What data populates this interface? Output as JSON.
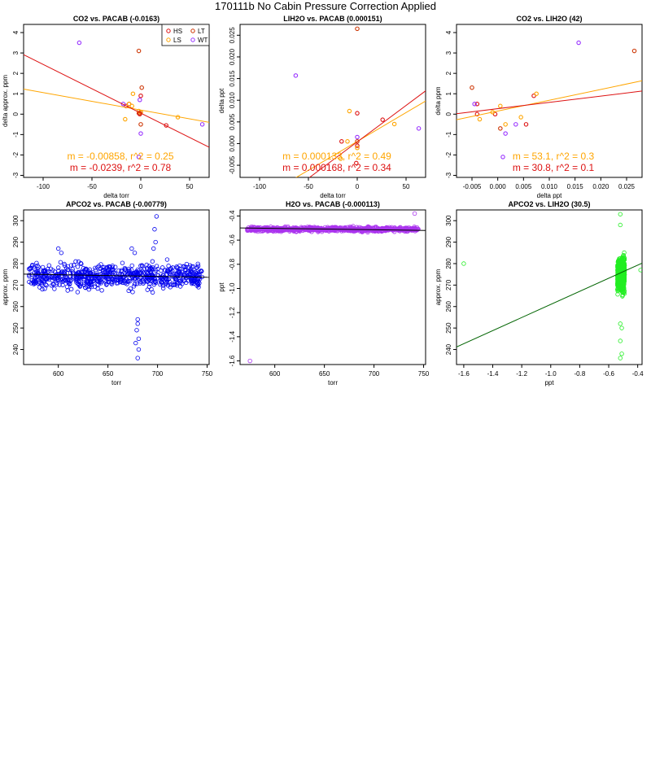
{
  "figure": {
    "title": "170111b   No Cabin Pressure Correction Applied"
  },
  "colors": {
    "HS": "#dd1111",
    "LS": "#ffa500",
    "LT": "#cc3300",
    "WT": "#9933ff",
    "blue": "#0000ee",
    "purple": "#aa33ee",
    "green": "#22ee22",
    "darkgreen": "#006400"
  },
  "chart_data": [
    {
      "type": "scatter",
      "title": "CO2 vs. PACAB (-0.0163)",
      "xlabel": "delta torr",
      "ylabel": "delta approx. ppm",
      "xlim": [
        -120,
        70
      ],
      "ylim": [
        -3.1,
        4.4
      ],
      "xticks": [
        -100,
        -50,
        0,
        50
      ],
      "yticks": [
        -3,
        -2,
        -1,
        0,
        1,
        2,
        3,
        4
      ],
      "legend": {
        "position": "top-right",
        "entries": [
          {
            "label": "HS",
            "color": "HS"
          },
          {
            "label": "LT",
            "color": "LT"
          },
          {
            "label": "LS",
            "color": "LS"
          },
          {
            "label": "WT",
            "color": "WT"
          }
        ]
      },
      "series": [
        {
          "name": "HS",
          "points": [
            [
              -12,
              0.5
            ],
            [
              -15,
              0.4
            ],
            [
              0,
              0.9
            ],
            [
              0,
              0.1
            ],
            [
              -1,
              0
            ],
            [
              26,
              -0.55
            ],
            [
              -2,
              0.05
            ]
          ]
        },
        {
          "name": "LS",
          "points": [
            [
              -8,
              1
            ],
            [
              -9,
              0.4
            ],
            [
              0,
              0.1
            ],
            [
              -16,
              -0.25
            ],
            [
              38,
              -0.15
            ],
            [
              -2,
              0.15
            ],
            [
              -12,
              0.5
            ]
          ]
        },
        {
          "name": "LT",
          "points": [
            [
              -2,
              3.1
            ],
            [
              1,
              1.3
            ],
            [
              0,
              -0.5
            ],
            [
              -1,
              0.05
            ]
          ]
        },
        {
          "name": "WT",
          "points": [
            [
              -63,
              3.5
            ],
            [
              -18,
              0.5
            ],
            [
              0,
              -0.95
            ],
            [
              63,
              -0.5
            ],
            [
              -2,
              -2.1
            ],
            [
              -1,
              0.7
            ]
          ]
        }
      ],
      "lines": [
        {
          "name": "LS fit",
          "color": "LS",
          "slope": -0.00858,
          "intercept": 0.2
        },
        {
          "name": "HS fit",
          "color": "HS",
          "slope": -0.0239,
          "intercept": 0.05
        }
      ],
      "annotations": [
        {
          "text": "m = -0.00858, r^2 = 0.25",
          "color": "LS"
        },
        {
          "text": "m = -0.0239, r^2 = 0.78",
          "color": "HS"
        }
      ]
    },
    {
      "type": "scatter",
      "title": "LIH2O vs. PACAB (0.000151)",
      "xlabel": "delta torr",
      "ylabel": "delta ppt",
      "xlim": [
        -120,
        70
      ],
      "ylim": [
        -0.0078,
        0.0275
      ],
      "xticks": [
        -100,
        -50,
        0,
        50
      ],
      "yticks": [
        -0.005,
        0,
        0.005,
        0.01,
        0.015,
        0.02,
        0.025
      ],
      "ytick_labels": [
        "-0.005",
        "0.000",
        "0.005",
        "0.010",
        "0.015",
        "0.020",
        "0.025"
      ],
      "series": [
        {
          "name": "HS",
          "points": [
            [
              -16,
              0.0005
            ],
            [
              0,
              0.007
            ],
            [
              0,
              -0.0005
            ],
            [
              26,
              0.0055
            ],
            [
              -1,
              -0.0045
            ]
          ]
        },
        {
          "name": "LS",
          "points": [
            [
              -8,
              0.0075
            ],
            [
              -10,
              0.0005
            ],
            [
              0,
              -0.001
            ],
            [
              38,
              0.0045
            ],
            [
              -17,
              -0.0035
            ]
          ]
        },
        {
          "name": "LT",
          "points": [
            [
              0,
              0.0265
            ],
            [
              0,
              0.0005
            ]
          ]
        },
        {
          "name": "WT",
          "points": [
            [
              -63,
              0.0157
            ],
            [
              63,
              0.0035
            ],
            [
              0,
              0.0015
            ]
          ]
        }
      ],
      "lines": [
        {
          "name": "LS fit",
          "color": "LS",
          "slope": 0.000133,
          "intercept": 0.0005
        },
        {
          "name": "HS fit",
          "color": "HS",
          "slope": 0.000168,
          "intercept": 0.0004
        }
      ],
      "annotations": [
        {
          "text": "m = 0.000133, r^2 = 0.49",
          "color": "LS"
        },
        {
          "text": "m = 0.000168, r^2 = 0.34",
          "color": "HS"
        }
      ]
    },
    {
      "type": "scatter",
      "title": "CO2 vs. LIH2O (42)",
      "xlabel": "delta ppt",
      "ylabel": "delta ppm",
      "xlim": [
        -0.008,
        0.028
      ],
      "ylim": [
        -3.1,
        4.4
      ],
      "xticks": [
        -0.005,
        0,
        0.005,
        0.01,
        0.015,
        0.02,
        0.025
      ],
      "xtick_labels": [
        "-0.005",
        "0.000",
        "0.005",
        "0.010",
        "0.015",
        "0.020",
        "0.025"
      ],
      "yticks": [
        -3,
        -2,
        -1,
        0,
        1,
        2,
        3,
        4
      ],
      "series": [
        {
          "name": "HS",
          "points": [
            [
              -0.004,
              0.5
            ],
            [
              0.007,
              0.9
            ],
            [
              0.0055,
              -0.5
            ],
            [
              -0.0005,
              0
            ],
            [
              -0.004,
              0
            ]
          ]
        },
        {
          "name": "LS",
          "points": [
            [
              0.0075,
              1
            ],
            [
              0.0005,
              0.4
            ],
            [
              -0.001,
              0.1
            ],
            [
              0.0045,
              -0.15
            ],
            [
              -0.0035,
              -0.25
            ],
            [
              0.0015,
              -0.5
            ]
          ]
        },
        {
          "name": "LT",
          "points": [
            [
              0.0265,
              3.1
            ],
            [
              -0.005,
              1.3
            ],
            [
              0.0005,
              -0.7
            ]
          ]
        },
        {
          "name": "WT",
          "points": [
            [
              0.0157,
              3.5
            ],
            [
              0.0035,
              -0.5
            ],
            [
              0.0015,
              -0.95
            ],
            [
              -0.0045,
              0.5
            ],
            [
              0.001,
              -2.1
            ]
          ]
        }
      ],
      "lines": [
        {
          "name": "LS fit",
          "color": "LS",
          "slope": 53.1,
          "intercept": 0.15
        },
        {
          "name": "HS fit",
          "color": "HS",
          "slope": 30.8,
          "intercept": 0.27
        }
      ],
      "annotations": [
        {
          "text": "m = 53.1, r^2 = 0.3",
          "color": "LS"
        },
        {
          "text": "m = 30.8, r^2 = 0.1",
          "color": "HS"
        }
      ]
    },
    {
      "type": "scatter",
      "title": "APCO2 vs. PACAB (-0.00779)",
      "xlabel": "torr",
      "ylabel": "approx. ppm",
      "xlim": [
        565,
        752
      ],
      "ylim": [
        233,
        305
      ],
      "xticks": [
        600,
        650,
        700,
        750
      ],
      "yticks": [
        240,
        250,
        260,
        270,
        280,
        290,
        300
      ],
      "color": "blue",
      "cloud": {
        "x": [
          570,
          745
        ],
        "center": 274,
        "spread": 4
      },
      "outliers": [
        [
          680,
          254
        ],
        [
          680,
          252
        ],
        [
          679,
          249
        ],
        [
          681,
          245
        ],
        [
          681,
          240
        ],
        [
          680,
          236
        ],
        [
          678,
          243
        ],
        [
          699,
          302
        ],
        [
          697,
          296
        ],
        [
          698,
          290
        ],
        [
          696,
          287
        ],
        [
          600,
          287
        ],
        [
          603,
          285
        ],
        [
          677,
          285
        ],
        [
          674,
          287
        ]
      ],
      "lines": [
        {
          "name": "fit",
          "color": "#000000",
          "slope": -0.00779,
          "intercept": 279.5
        }
      ]
    },
    {
      "type": "scatter",
      "title": "H2O vs. PACAB (-0.000113)",
      "xlabel": "torr",
      "ylabel": "ppt",
      "xlim": [
        565,
        752
      ],
      "ylim": [
        -1.63,
        -0.35
      ],
      "xticks": [
        600,
        650,
        700,
        750
      ],
      "yticks": [
        -1.6,
        -1.4,
        -1.2,
        -1.0,
        -0.8,
        -0.6,
        -0.4
      ],
      "ytick_labels": [
        "-1.6",
        "-1.4",
        "-1.2",
        "-1.0",
        "-0.8",
        "-0.6",
        "-0.4"
      ],
      "color": "purple",
      "cloud": {
        "x": [
          572,
          745
        ],
        "center": -0.51,
        "spread": 0.012
      },
      "outliers": [
        [
          575,
          -1.6
        ],
        [
          741,
          -0.38
        ]
      ],
      "lines": [
        {
          "name": "fit",
          "color": "#000000",
          "slope": -0.000113,
          "intercept": -0.435
        }
      ]
    },
    {
      "type": "scatter",
      "title": "APCO2 vs. LIH2O (30.5)",
      "xlabel": "ppt",
      "ylabel": "approx. ppm",
      "xlim": [
        -1.65,
        -0.37
      ],
      "ylim": [
        233,
        305
      ],
      "xticks": [
        -1.6,
        -1.4,
        -1.2,
        -1.0,
        -0.8,
        -0.6,
        -0.4
      ],
      "xtick_labels": [
        "-1.6",
        "-1.4",
        "-1.2",
        "-1.0",
        "-0.8",
        "-0.6",
        "-0.4"
      ],
      "yticks": [
        240,
        250,
        260,
        270,
        280,
        290,
        300
      ],
      "color": "green",
      "cloud": {
        "x": [
          -0.54,
          -0.49
        ],
        "center": 275,
        "spread": 5
      },
      "outliers": [
        [
          -1.6,
          280
        ],
        [
          -0.38,
          277
        ],
        [
          -0.52,
          303
        ],
        [
          -0.52,
          298
        ],
        [
          -0.52,
          252
        ],
        [
          -0.51,
          250
        ],
        [
          -0.52,
          244
        ],
        [
          -0.51,
          238
        ],
        [
          -0.52,
          236
        ]
      ],
      "lines": [
        {
          "name": "fit",
          "color": "darkgreen",
          "slope": 30.5,
          "intercept": 291.5
        }
      ]
    }
  ]
}
